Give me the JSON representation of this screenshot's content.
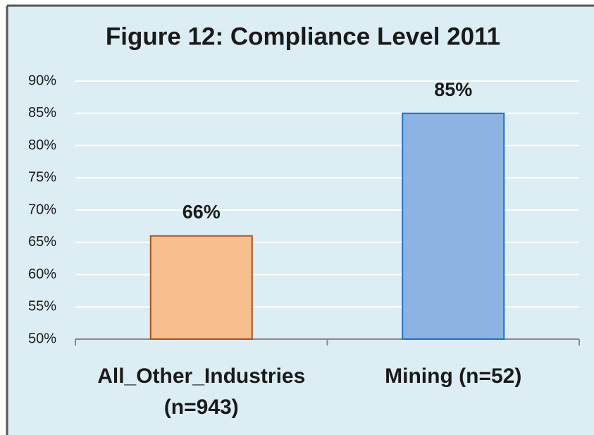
{
  "chart_data": {
    "type": "bar",
    "title": "Figure 12: Compliance Level 2011",
    "categories": [
      "All_Other_Industries (n=943)",
      "Mining (n=52)"
    ],
    "values": [
      66,
      85
    ],
    "value_labels": [
      "66%",
      "85%"
    ],
    "colors": [
      "#f9be8e",
      "#8db3e2"
    ],
    "ylim": [
      50,
      90
    ],
    "yticks": [
      {
        "value": 50,
        "label": "50%"
      },
      {
        "value": 55,
        "label": "55%"
      },
      {
        "value": 60,
        "label": "60%"
      },
      {
        "value": 65,
        "label": "65%"
      },
      {
        "value": 70,
        "label": "70%"
      },
      {
        "value": 75,
        "label": "75%"
      },
      {
        "value": 80,
        "label": "80%"
      },
      {
        "value": 85,
        "label": "85%"
      },
      {
        "value": 90,
        "label": "90%"
      }
    ],
    "grid": true
  }
}
